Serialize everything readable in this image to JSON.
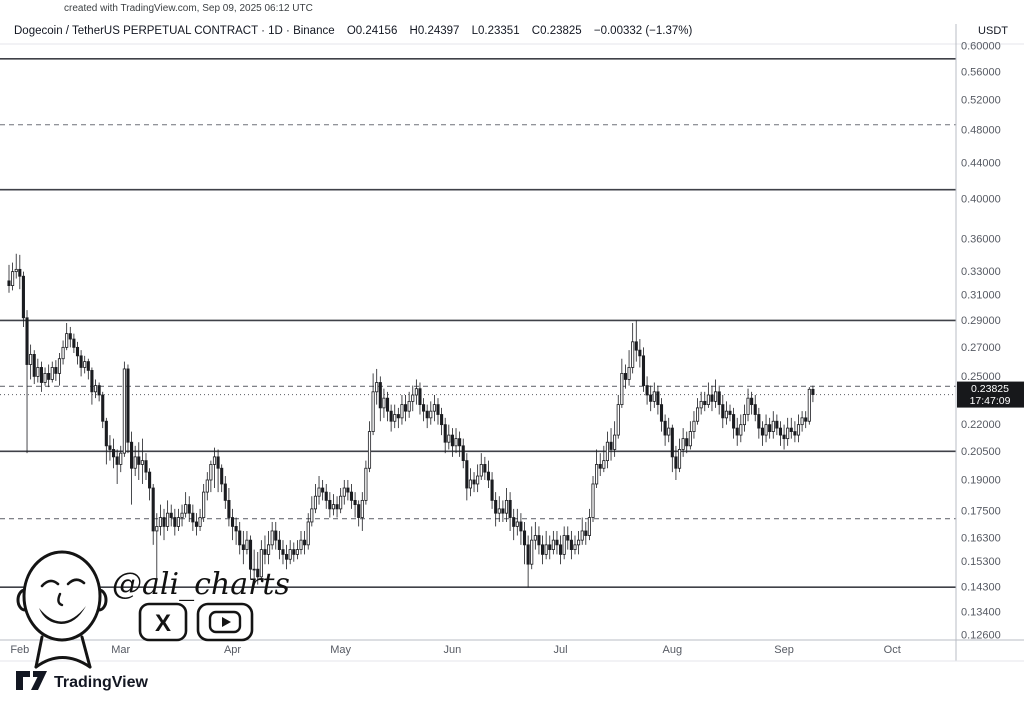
{
  "credit_line": "created with TradingView.com, Sep 09, 2025 06:12 UTC",
  "header": {
    "title": "Dogecoin / TetherUS PERPETUAL CONTRACT · 1D · Binance",
    "open": "O0.24156",
    "high": "H0.24397",
    "low": "L0.23351",
    "close": "C0.23825",
    "change": "−0.00332 (−1.37%)",
    "currency": "USDT"
  },
  "watermark": {
    "handle": "@ali_charts",
    "x_icon": "X"
  },
  "footer": {
    "brand": "TradingView"
  },
  "chart_data": {
    "type": "candlestick",
    "market": "DOGEUSDT Perpetual · Binance",
    "interval": "1D",
    "scale": "logarithmic",
    "start_date": "2025-01-29",
    "end_date": "2025-09-09",
    "y_axis": {
      "top_price": 0.6,
      "bottom_price": 0.126,
      "ticks": [
        [
          0.6,
          "0.60000"
        ],
        [
          0.56,
          "0.56000"
        ],
        [
          0.52,
          "0.52000"
        ],
        [
          0.48,
          "0.48000"
        ],
        [
          0.44,
          "0.44000"
        ],
        [
          0.4,
          "0.40000"
        ],
        [
          0.36,
          "0.36000"
        ],
        [
          0.33,
          "0.33000"
        ],
        [
          0.31,
          "0.31000"
        ],
        [
          0.29,
          "0.29000"
        ],
        [
          0.27,
          "0.27000"
        ],
        [
          0.25,
          "0.25000"
        ],
        [
          0.22,
          "0.22000"
        ],
        [
          0.205,
          "0.20500"
        ],
        [
          0.19,
          "0.19000"
        ],
        [
          0.175,
          "0.17500"
        ],
        [
          0.163,
          "0.16300"
        ],
        [
          0.153,
          "0.15300"
        ],
        [
          0.143,
          "0.14300"
        ],
        [
          0.134,
          "0.13400"
        ],
        [
          0.126,
          "0.12600"
        ]
      ]
    },
    "x_axis": {
      "month_labels": [
        "Feb",
        "Mar",
        "Apr",
        "May",
        "Jun",
        "Jul",
        "Aug",
        "Sep",
        "Oct"
      ],
      "month_indices": [
        3,
        31,
        62,
        92,
        123,
        153,
        184,
        215,
        245
      ]
    },
    "levels": {
      "solid": [
        0.58,
        0.41,
        0.29,
        0.205,
        0.143
      ],
      "dashed": [
        0.487,
        0.2435,
        0.1715
      ]
    },
    "last": {
      "price": 0.23825,
      "price_label": "0.23825",
      "countdown": "17:47:09",
      "change": -0.00332,
      "change_pct": -1.37
    },
    "ohlc_today": {
      "open": 0.24156,
      "high": 0.24397,
      "low": 0.23351,
      "close": 0.23825
    },
    "candles": [
      [
        0.322,
        0.336,
        0.312,
        0.318
      ],
      [
        0.318,
        0.338,
        0.314,
        0.33
      ],
      [
        0.33,
        0.346,
        0.324,
        0.332
      ],
      [
        0.332,
        0.345,
        0.315,
        0.326
      ],
      [
        0.326,
        0.33,
        0.285,
        0.292
      ],
      [
        0.292,
        0.298,
        0.204,
        0.258
      ],
      [
        0.258,
        0.272,
        0.248,
        0.265
      ],
      [
        0.265,
        0.268,
        0.245,
        0.25
      ],
      [
        0.25,
        0.262,
        0.246,
        0.256
      ],
      [
        0.256,
        0.26,
        0.24,
        0.246
      ],
      [
        0.246,
        0.256,
        0.244,
        0.252
      ],
      [
        0.252,
        0.258,
        0.243,
        0.248
      ],
      [
        0.248,
        0.26,
        0.246,
        0.256
      ],
      [
        0.256,
        0.261,
        0.247,
        0.252
      ],
      [
        0.252,
        0.266,
        0.244,
        0.262
      ],
      [
        0.262,
        0.275,
        0.258,
        0.27
      ],
      [
        0.27,
        0.288,
        0.268,
        0.28
      ],
      [
        0.28,
        0.285,
        0.27,
        0.276
      ],
      [
        0.276,
        0.28,
        0.266,
        0.27
      ],
      [
        0.27,
        0.274,
        0.258,
        0.264
      ],
      [
        0.264,
        0.268,
        0.25,
        0.256
      ],
      [
        0.256,
        0.264,
        0.252,
        0.26
      ],
      [
        0.26,
        0.262,
        0.248,
        0.254
      ],
      [
        0.254,
        0.256,
        0.232,
        0.24
      ],
      [
        0.24,
        0.248,
        0.236,
        0.244
      ],
      [
        0.244,
        0.246,
        0.234,
        0.238
      ],
      [
        0.238,
        0.24,
        0.218,
        0.222
      ],
      [
        0.222,
        0.224,
        0.198,
        0.208
      ],
      [
        0.208,
        0.214,
        0.2,
        0.206
      ],
      [
        0.206,
        0.212,
        0.196,
        0.202
      ],
      [
        0.202,
        0.206,
        0.188,
        0.198
      ],
      [
        0.198,
        0.208,
        0.194,
        0.204
      ],
      [
        0.204,
        0.26,
        0.202,
        0.255
      ],
      [
        0.255,
        0.258,
        0.204,
        0.21
      ],
      [
        0.21,
        0.216,
        0.178,
        0.196
      ],
      [
        0.196,
        0.208,
        0.192,
        0.202
      ],
      [
        0.202,
        0.21,
        0.19,
        0.198
      ],
      [
        0.198,
        0.212,
        0.188,
        0.2
      ],
      [
        0.2,
        0.204,
        0.19,
        0.194
      ],
      [
        0.194,
        0.196,
        0.18,
        0.186
      ],
      [
        0.186,
        0.188,
        0.16,
        0.166
      ],
      [
        0.166,
        0.174,
        0.146,
        0.168
      ],
      [
        0.168,
        0.178,
        0.164,
        0.172
      ],
      [
        0.172,
        0.176,
        0.162,
        0.168
      ],
      [
        0.168,
        0.18,
        0.166,
        0.174
      ],
      [
        0.174,
        0.178,
        0.168,
        0.172
      ],
      [
        0.172,
        0.176,
        0.164,
        0.168
      ],
      [
        0.168,
        0.176,
        0.166,
        0.172
      ],
      [
        0.172,
        0.178,
        0.168,
        0.174
      ],
      [
        0.174,
        0.184,
        0.172,
        0.178
      ],
      [
        0.178,
        0.182,
        0.17,
        0.174
      ],
      [
        0.174,
        0.178,
        0.166,
        0.17
      ],
      [
        0.17,
        0.174,
        0.164,
        0.168
      ],
      [
        0.168,
        0.176,
        0.166,
        0.172
      ],
      [
        0.172,
        0.188,
        0.17,
        0.184
      ],
      [
        0.184,
        0.194,
        0.18,
        0.19
      ],
      [
        0.19,
        0.2,
        0.184,
        0.198
      ],
      [
        0.198,
        0.207,
        0.186,
        0.202
      ],
      [
        0.202,
        0.206,
        0.184,
        0.196
      ],
      [
        0.196,
        0.198,
        0.184,
        0.188
      ],
      [
        0.188,
        0.192,
        0.176,
        0.18
      ],
      [
        0.18,
        0.186,
        0.168,
        0.172
      ],
      [
        0.172,
        0.176,
        0.162,
        0.168
      ],
      [
        0.168,
        0.172,
        0.16,
        0.166
      ],
      [
        0.166,
        0.17,
        0.156,
        0.16
      ],
      [
        0.16,
        0.166,
        0.152,
        0.158
      ],
      [
        0.158,
        0.166,
        0.156,
        0.162
      ],
      [
        0.162,
        0.164,
        0.146,
        0.15
      ],
      [
        0.15,
        0.158,
        0.143,
        0.15
      ],
      [
        0.15,
        0.157,
        0.144,
        0.147
      ],
      [
        0.147,
        0.162,
        0.145,
        0.158
      ],
      [
        0.158,
        0.164,
        0.152,
        0.156
      ],
      [
        0.156,
        0.166,
        0.152,
        0.16
      ],
      [
        0.16,
        0.17,
        0.158,
        0.166
      ],
      [
        0.166,
        0.17,
        0.158,
        0.162
      ],
      [
        0.162,
        0.166,
        0.154,
        0.158
      ],
      [
        0.158,
        0.162,
        0.152,
        0.156
      ],
      [
        0.156,
        0.16,
        0.15,
        0.154
      ],
      [
        0.154,
        0.162,
        0.152,
        0.158
      ],
      [
        0.158,
        0.161,
        0.153,
        0.156
      ],
      [
        0.156,
        0.162,
        0.154,
        0.158
      ],
      [
        0.158,
        0.166,
        0.156,
        0.162
      ],
      [
        0.162,
        0.166,
        0.156,
        0.16
      ],
      [
        0.16,
        0.174,
        0.158,
        0.17
      ],
      [
        0.17,
        0.182,
        0.168,
        0.176
      ],
      [
        0.176,
        0.188,
        0.174,
        0.182
      ],
      [
        0.182,
        0.192,
        0.178,
        0.186
      ],
      [
        0.186,
        0.19,
        0.18,
        0.184
      ],
      [
        0.184,
        0.188,
        0.176,
        0.18
      ],
      [
        0.18,
        0.184,
        0.172,
        0.176
      ],
      [
        0.176,
        0.183,
        0.173,
        0.178
      ],
      [
        0.178,
        0.182,
        0.172,
        0.176
      ],
      [
        0.176,
        0.186,
        0.174,
        0.182
      ],
      [
        0.182,
        0.19,
        0.178,
        0.186
      ],
      [
        0.186,
        0.19,
        0.18,
        0.184
      ],
      [
        0.184,
        0.188,
        0.176,
        0.18
      ],
      [
        0.18,
        0.184,
        0.172,
        0.178
      ],
      [
        0.178,
        0.18,
        0.168,
        0.172
      ],
      [
        0.172,
        0.184,
        0.166,
        0.18
      ],
      [
        0.18,
        0.2,
        0.178,
        0.196
      ],
      [
        0.196,
        0.222,
        0.194,
        0.216
      ],
      [
        0.216,
        0.252,
        0.214,
        0.24
      ],
      [
        0.24,
        0.255,
        0.232,
        0.246
      ],
      [
        0.246,
        0.25,
        0.222,
        0.23
      ],
      [
        0.23,
        0.242,
        0.224,
        0.236
      ],
      [
        0.236,
        0.24,
        0.222,
        0.228
      ],
      [
        0.228,
        0.232,
        0.216,
        0.222
      ],
      [
        0.222,
        0.232,
        0.218,
        0.226
      ],
      [
        0.226,
        0.23,
        0.218,
        0.224
      ],
      [
        0.224,
        0.238,
        0.22,
        0.232
      ],
      [
        0.232,
        0.238,
        0.222,
        0.228
      ],
      [
        0.228,
        0.24,
        0.224,
        0.234
      ],
      [
        0.234,
        0.244,
        0.228,
        0.238
      ],
      [
        0.238,
        0.248,
        0.232,
        0.242
      ],
      [
        0.242,
        0.246,
        0.226,
        0.232
      ],
      [
        0.232,
        0.236,
        0.222,
        0.228
      ],
      [
        0.228,
        0.232,
        0.218,
        0.224
      ],
      [
        0.224,
        0.234,
        0.22,
        0.228
      ],
      [
        0.228,
        0.238,
        0.222,
        0.232
      ],
      [
        0.232,
        0.236,
        0.22,
        0.226
      ],
      [
        0.226,
        0.23,
        0.214,
        0.22
      ],
      [
        0.22,
        0.224,
        0.204,
        0.21
      ],
      [
        0.21,
        0.22,
        0.206,
        0.214
      ],
      [
        0.214,
        0.218,
        0.202,
        0.208
      ],
      [
        0.208,
        0.218,
        0.204,
        0.212
      ],
      [
        0.212,
        0.216,
        0.202,
        0.208
      ],
      [
        0.208,
        0.212,
        0.196,
        0.2
      ],
      [
        0.2,
        0.204,
        0.18,
        0.186
      ],
      [
        0.186,
        0.196,
        0.182,
        0.19
      ],
      [
        0.19,
        0.194,
        0.184,
        0.188
      ],
      [
        0.188,
        0.198,
        0.184,
        0.192
      ],
      [
        0.192,
        0.204,
        0.19,
        0.198
      ],
      [
        0.198,
        0.202,
        0.19,
        0.194
      ],
      [
        0.194,
        0.2,
        0.186,
        0.19
      ],
      [
        0.19,
        0.194,
        0.176,
        0.18
      ],
      [
        0.18,
        0.184,
        0.168,
        0.174
      ],
      [
        0.174,
        0.182,
        0.17,
        0.176
      ],
      [
        0.176,
        0.18,
        0.17,
        0.174
      ],
      [
        0.174,
        0.186,
        0.17,
        0.18
      ],
      [
        0.18,
        0.184,
        0.166,
        0.172
      ],
      [
        0.172,
        0.176,
        0.162,
        0.168
      ],
      [
        0.168,
        0.176,
        0.164,
        0.17
      ],
      [
        0.17,
        0.174,
        0.16,
        0.166
      ],
      [
        0.166,
        0.17,
        0.152,
        0.16
      ],
      [
        0.16,
        0.164,
        0.143,
        0.152
      ],
      [
        0.152,
        0.168,
        0.15,
        0.162
      ],
      [
        0.162,
        0.17,
        0.158,
        0.164
      ],
      [
        0.164,
        0.168,
        0.156,
        0.16
      ],
      [
        0.16,
        0.164,
        0.152,
        0.156
      ],
      [
        0.156,
        0.166,
        0.154,
        0.16
      ],
      [
        0.16,
        0.164,
        0.154,
        0.158
      ],
      [
        0.158,
        0.166,
        0.156,
        0.162
      ],
      [
        0.162,
        0.166,
        0.156,
        0.16
      ],
      [
        0.16,
        0.164,
        0.152,
        0.156
      ],
      [
        0.156,
        0.168,
        0.154,
        0.164
      ],
      [
        0.164,
        0.168,
        0.158,
        0.162
      ],
      [
        0.162,
        0.166,
        0.154,
        0.158
      ],
      [
        0.158,
        0.164,
        0.156,
        0.16
      ],
      [
        0.16,
        0.166,
        0.156,
        0.162
      ],
      [
        0.162,
        0.172,
        0.16,
        0.166
      ],
      [
        0.166,
        0.17,
        0.16,
        0.164
      ],
      [
        0.164,
        0.176,
        0.162,
        0.172
      ],
      [
        0.172,
        0.192,
        0.17,
        0.188
      ],
      [
        0.188,
        0.206,
        0.186,
        0.198
      ],
      [
        0.198,
        0.204,
        0.192,
        0.196
      ],
      [
        0.196,
        0.208,
        0.194,
        0.2
      ],
      [
        0.2,
        0.216,
        0.196,
        0.21
      ],
      [
        0.21,
        0.218,
        0.2,
        0.206
      ],
      [
        0.206,
        0.222,
        0.202,
        0.214
      ],
      [
        0.214,
        0.238,
        0.212,
        0.232
      ],
      [
        0.232,
        0.262,
        0.23,
        0.252
      ],
      [
        0.252,
        0.258,
        0.242,
        0.248
      ],
      [
        0.248,
        0.268,
        0.244,
        0.256
      ],
      [
        0.256,
        0.288,
        0.252,
        0.274
      ],
      [
        0.274,
        0.29,
        0.26,
        0.268
      ],
      [
        0.268,
        0.276,
        0.256,
        0.264
      ],
      [
        0.264,
        0.27,
        0.24,
        0.244
      ],
      [
        0.244,
        0.25,
        0.232,
        0.238
      ],
      [
        0.238,
        0.244,
        0.228,
        0.234
      ],
      [
        0.234,
        0.246,
        0.23,
        0.24
      ],
      [
        0.24,
        0.244,
        0.226,
        0.232
      ],
      [
        0.232,
        0.236,
        0.216,
        0.222
      ],
      [
        0.222,
        0.226,
        0.208,
        0.214
      ],
      [
        0.214,
        0.224,
        0.21,
        0.218
      ],
      [
        0.218,
        0.22,
        0.194,
        0.202
      ],
      [
        0.202,
        0.208,
        0.19,
        0.196
      ],
      [
        0.196,
        0.212,
        0.194,
        0.206
      ],
      [
        0.206,
        0.218,
        0.202,
        0.212
      ],
      [
        0.212,
        0.216,
        0.204,
        0.208
      ],
      [
        0.208,
        0.222,
        0.206,
        0.216
      ],
      [
        0.216,
        0.228,
        0.212,
        0.222
      ],
      [
        0.222,
        0.236,
        0.22,
        0.23
      ],
      [
        0.23,
        0.24,
        0.226,
        0.234
      ],
      [
        0.234,
        0.24,
        0.228,
        0.232
      ],
      [
        0.232,
        0.246,
        0.23,
        0.238
      ],
      [
        0.238,
        0.244,
        0.228,
        0.234
      ],
      [
        0.234,
        0.248,
        0.23,
        0.24
      ],
      [
        0.24,
        0.244,
        0.226,
        0.232
      ],
      [
        0.232,
        0.238,
        0.218,
        0.224
      ],
      [
        0.224,
        0.234,
        0.22,
        0.228
      ],
      [
        0.228,
        0.232,
        0.222,
        0.226
      ],
      [
        0.226,
        0.23,
        0.212,
        0.218
      ],
      [
        0.218,
        0.224,
        0.208,
        0.214
      ],
      [
        0.214,
        0.226,
        0.21,
        0.22
      ],
      [
        0.22,
        0.232,
        0.216,
        0.226
      ],
      [
        0.226,
        0.242,
        0.222,
        0.236
      ],
      [
        0.236,
        0.24,
        0.226,
        0.232
      ],
      [
        0.232,
        0.238,
        0.222,
        0.226
      ],
      [
        0.226,
        0.23,
        0.212,
        0.218
      ],
      [
        0.218,
        0.222,
        0.208,
        0.214
      ],
      [
        0.214,
        0.226,
        0.21,
        0.22
      ],
      [
        0.22,
        0.224,
        0.212,
        0.216
      ],
      [
        0.216,
        0.228,
        0.212,
        0.222
      ],
      [
        0.222,
        0.226,
        0.214,
        0.218
      ],
      [
        0.218,
        0.222,
        0.208,
        0.214
      ],
      [
        0.214,
        0.22,
        0.206,
        0.212
      ],
      [
        0.212,
        0.224,
        0.208,
        0.218
      ],
      [
        0.218,
        0.224,
        0.212,
        0.216
      ],
      [
        0.216,
        0.222,
        0.21,
        0.214
      ],
      [
        0.214,
        0.226,
        0.21,
        0.22
      ],
      [
        0.22,
        0.228,
        0.216,
        0.224
      ],
      [
        0.224,
        0.228,
        0.218,
        0.222
      ],
      [
        0.222,
        0.243,
        0.22,
        0.2416
      ],
      [
        0.24156,
        0.24397,
        0.23351,
        0.23825
      ]
    ]
  }
}
